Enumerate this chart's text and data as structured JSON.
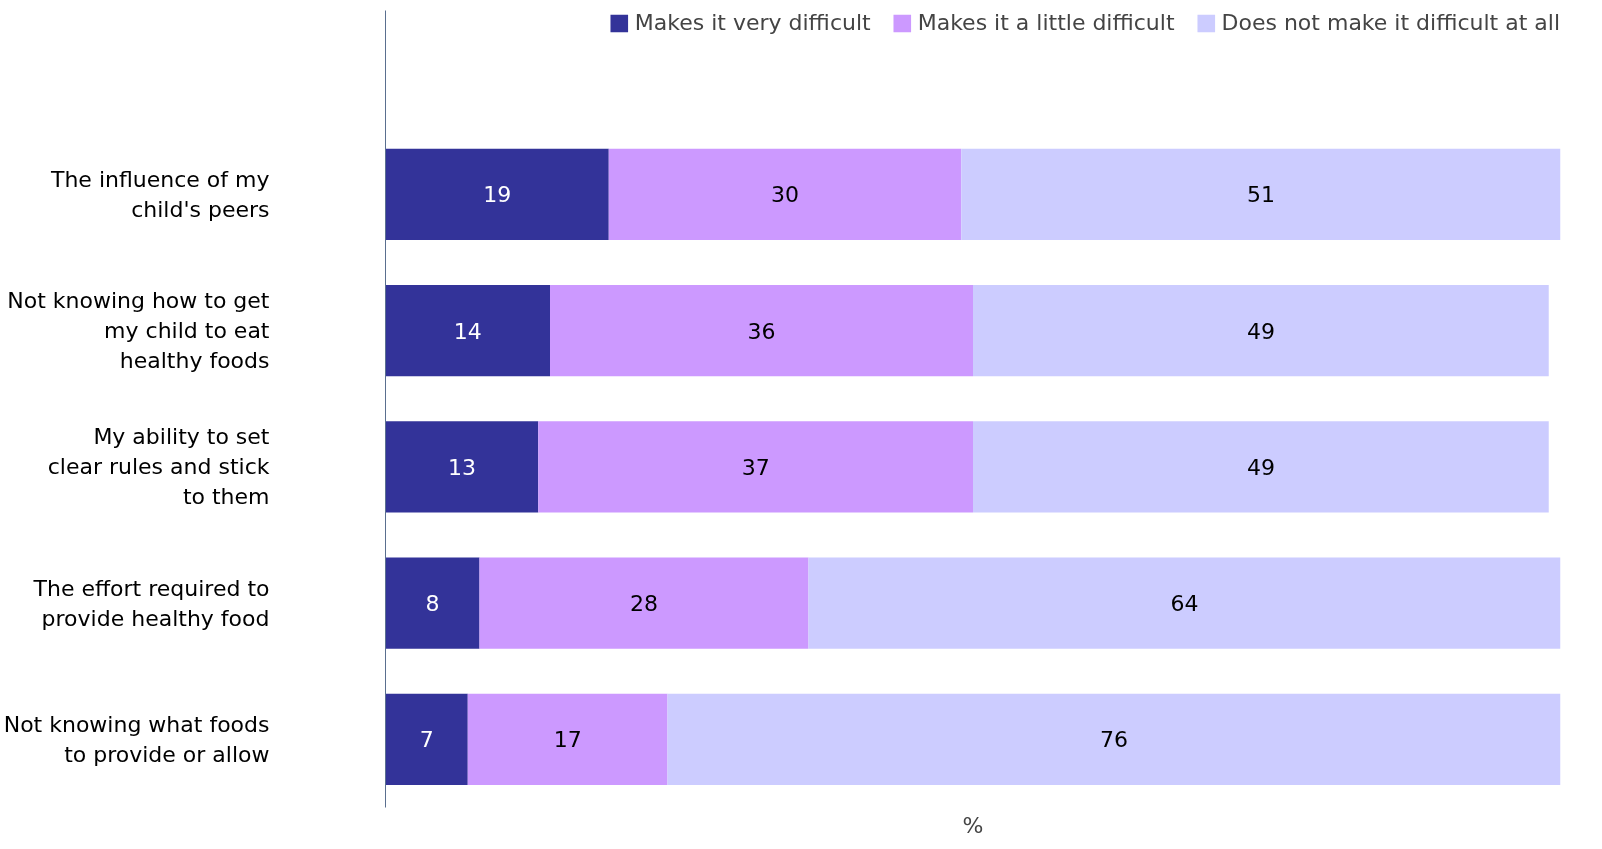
{
  "chart_data": {
    "type": "bar",
    "orientation": "horizontal",
    "stacked": true,
    "xlabel": "%",
    "categories": [
      "The influence of my child's peers",
      "Not knowing how to get my child to eat healthy foods",
      "My ability to set clear rules and stick to them",
      "The effort required to provide healthy food",
      "Not knowing what foods to provide or allow"
    ],
    "series": [
      {
        "name": "Makes it very difficult",
        "color": "#333399",
        "values": [
          19,
          14,
          13,
          8,
          7
        ]
      },
      {
        "name": "Makes it a little difficult",
        "color": "#cc99ff",
        "values": [
          30,
          36,
          37,
          28,
          17
        ]
      },
      {
        "name": "Does not make it difficult at all",
        "color": "#ccccff",
        "values": [
          51,
          49,
          49,
          64,
          76
        ]
      }
    ],
    "xlim": [
      0,
      100
    ],
    "data_labels": true,
    "legend": "top",
    "grid": false,
    "tick_labels": "y"
  }
}
